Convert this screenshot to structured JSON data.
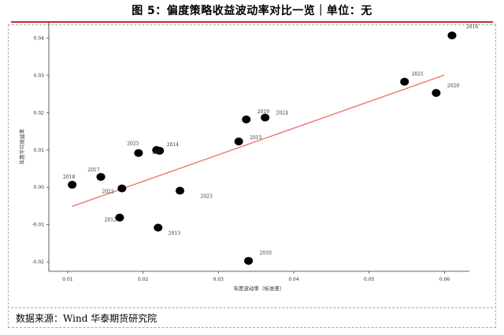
{
  "title": "图 5：偏度策略收益波动率对比一览｜单位：无",
  "source": "数据来源：Wind 华泰期货研究院",
  "colors": {
    "title_rule": "#b8332e",
    "points": "#000000",
    "trend_line": "#e8776f"
  },
  "chart_data": {
    "type": "scatter",
    "title": "",
    "xlabel": "年度波动率（标准差）",
    "ylabel": "年度平均收益率",
    "xlim": [
      0.0075,
      0.0633
    ],
    "ylim": [
      -0.0225,
      0.0443
    ],
    "x_ticks": [
      0.01,
      0.02,
      0.03,
      0.04,
      0.05,
      0.06
    ],
    "x_tick_labels": [
      "0.01",
      "0.02",
      "0.03",
      "0.04",
      "0.05",
      "0.06"
    ],
    "y_ticks": [
      -0.02,
      -0.01,
      0.0,
      0.01,
      0.02,
      0.03,
      0.04
    ],
    "y_tick_labels": [
      "-0.02",
      "-0.01",
      "0.00",
      "0.01",
      "0.02",
      "0.03",
      "0.04"
    ],
    "grid": false,
    "points": [
      {
        "label": "2016",
        "x": 0.061,
        "y": 0.0407
      },
      {
        "label": "2021",
        "x": 0.0547,
        "y": 0.0283
      },
      {
        "label": "2020",
        "x": 0.0589,
        "y": 0.0253
      },
      {
        "label": "2024",
        "x": 0.0362,
        "y": 0.0187
      },
      {
        "label": "2019",
        "x": 0.0337,
        "y": 0.0182
      },
      {
        "label": "2015",
        "x": 0.0327,
        "y": 0.0123
      },
      {
        "label": "2025",
        "x": 0.0194,
        "y": 0.0092
      },
      {
        "label": "2014",
        "x": 0.0218,
        "y": 0.01
      },
      {
        "label": "2011",
        "x": 0.0222,
        "y": 0.0098
      },
      {
        "label": "2017",
        "x": 0.0144,
        "y": 0.0028
      },
      {
        "label": "2018",
        "x": 0.0106,
        "y": 0.0007
      },
      {
        "label": "2022",
        "x": 0.0172,
        "y": -0.0003
      },
      {
        "label": "2023",
        "x": 0.0249,
        "y": -0.0009
      },
      {
        "label": "2012",
        "x": 0.0169,
        "y": -0.0081
      },
      {
        "label": "2013",
        "x": 0.022,
        "y": -0.0108
      },
      {
        "label": "2010",
        "x": 0.034,
        "y": -0.0197
      }
    ],
    "trend_line": {
      "x": [
        0.0106,
        0.06
      ],
      "y": [
        -0.0051,
        0.0301
      ]
    }
  }
}
